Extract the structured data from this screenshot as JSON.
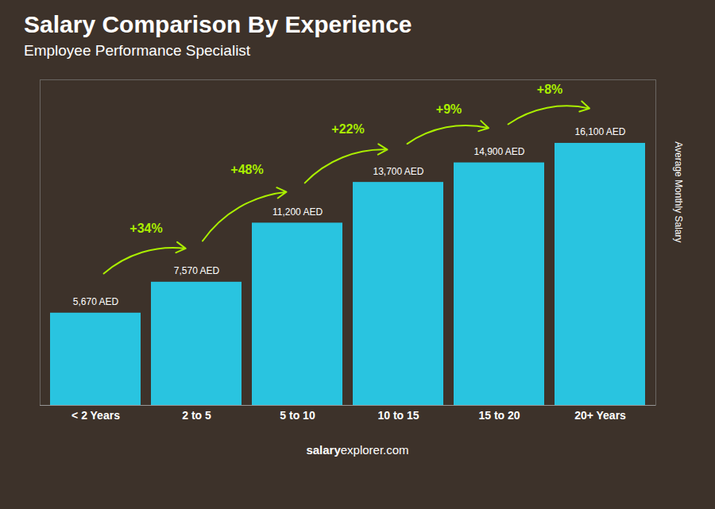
{
  "chart_data": {
    "type": "bar",
    "title": "Salary Comparison By Experience",
    "subtitle": "Employee Performance Specialist",
    "ylabel": "Average Monthly Salary",
    "footer": [
      "salary",
      "explorer.com"
    ],
    "categories": [
      "< 2 Years",
      "2 to 5",
      "5 to 10",
      "10 to 15",
      "15 to 20",
      "20+ Years"
    ],
    "values": [
      5670,
      7570,
      11200,
      13700,
      14900,
      16100
    ],
    "value_labels": [
      "5,670 AED",
      "7,570 AED",
      "11,200 AED",
      "13,700 AED",
      "14,900 AED",
      "16,100 AED"
    ],
    "data_labels": true,
    "color": "#29c4e0",
    "annotations": [
      {
        "text": "+34%",
        "color": "#aaee00"
      },
      {
        "text": "+48%",
        "color": "#aaee00"
      },
      {
        "text": "+22%",
        "color": "#aaee00"
      },
      {
        "text": "+9%",
        "color": "#aaee00"
      },
      {
        "text": "+8%",
        "color": "#aaee00"
      }
    ],
    "ylim": [
      0,
      20000
    ],
    "tick_labels": "x",
    "grid": false
  }
}
